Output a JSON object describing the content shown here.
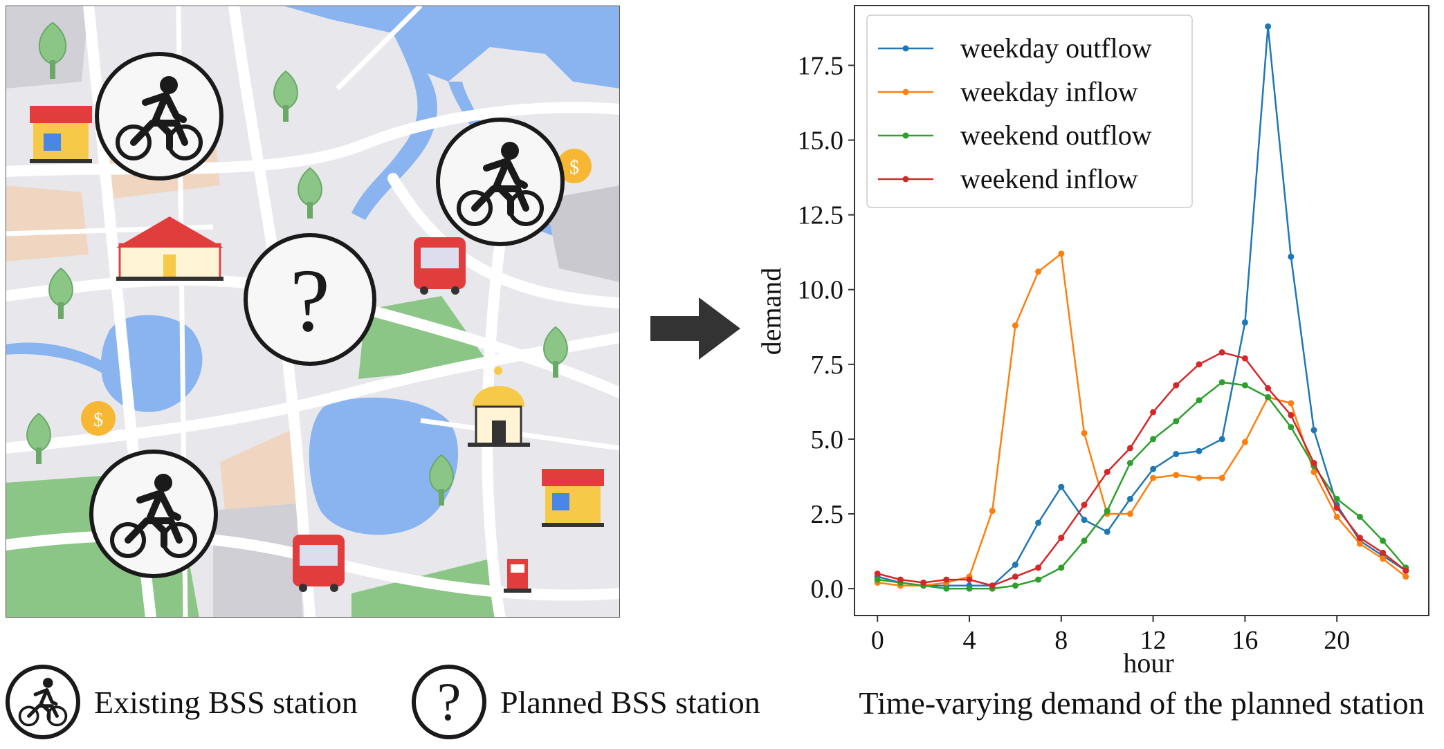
{
  "map": {
    "planned_symbol": "?",
    "icons": [
      "bicycle-icon",
      "question-icon",
      "shop-icon",
      "school-icon",
      "bus-icon",
      "mosque-icon",
      "gas-pump-icon",
      "money-pin-icon",
      "tree-icon"
    ]
  },
  "legend": {
    "existing_label": "Existing BSS station",
    "planned_label": "Planned BSS station",
    "planned_symbol": "?"
  },
  "caption": "Time-varying  demand of the planned station",
  "chart_data": {
    "type": "line",
    "xlabel": "hour",
    "ylabel": "demand",
    "xlim": [
      -1,
      24
    ],
    "ylim": [
      -0.9,
      19.5
    ],
    "xticks": [
      0,
      4,
      8,
      12,
      16,
      20
    ],
    "yticks": [
      0.0,
      2.5,
      5.0,
      7.5,
      10.0,
      12.5,
      15.0,
      17.5
    ],
    "ytick_labels": [
      "0.0",
      "2.5",
      "5.0",
      "7.5",
      "10.0",
      "12.5",
      "15.0",
      "17.5"
    ],
    "legend_position": "top-left",
    "x": [
      0,
      1,
      2,
      3,
      4,
      5,
      6,
      7,
      8,
      9,
      10,
      11,
      12,
      13,
      14,
      15,
      16,
      17,
      18,
      19,
      20,
      21,
      22,
      23
    ],
    "series": [
      {
        "name": "weekday outflow",
        "color": "#1f77b4",
        "values": [
          0.4,
          0.2,
          0.1,
          0.1,
          0.1,
          0.1,
          0.8,
          2.2,
          3.4,
          2.3,
          1.9,
          3.0,
          4.0,
          4.5,
          4.6,
          5.0,
          8.9,
          18.8,
          11.1,
          5.3,
          2.8,
          1.6,
          1.1,
          0.6
        ]
      },
      {
        "name": "weekday inflow",
        "color": "#ff7f0e",
        "values": [
          0.2,
          0.1,
          0.1,
          0.2,
          0.4,
          2.6,
          8.8,
          10.6,
          11.2,
          5.2,
          2.5,
          2.5,
          3.7,
          3.8,
          3.7,
          3.7,
          4.9,
          6.4,
          6.2,
          3.9,
          2.4,
          1.5,
          1.0,
          0.4
        ]
      },
      {
        "name": "weekend outflow",
        "color": "#2ca02c",
        "values": [
          0.3,
          0.2,
          0.1,
          0.0,
          0.0,
          0.0,
          0.1,
          0.3,
          0.7,
          1.6,
          2.6,
          4.2,
          5.0,
          5.6,
          6.3,
          6.9,
          6.8,
          6.4,
          5.4,
          4.1,
          3.0,
          2.4,
          1.6,
          0.7
        ]
      },
      {
        "name": "weekend inflow",
        "color": "#d62728",
        "values": [
          0.5,
          0.3,
          0.2,
          0.3,
          0.3,
          0.1,
          0.4,
          0.7,
          1.7,
          2.8,
          3.9,
          4.7,
          5.9,
          6.8,
          7.5,
          7.9,
          7.7,
          6.7,
          5.8,
          4.2,
          2.7,
          1.7,
          1.2,
          0.6
        ]
      }
    ]
  }
}
